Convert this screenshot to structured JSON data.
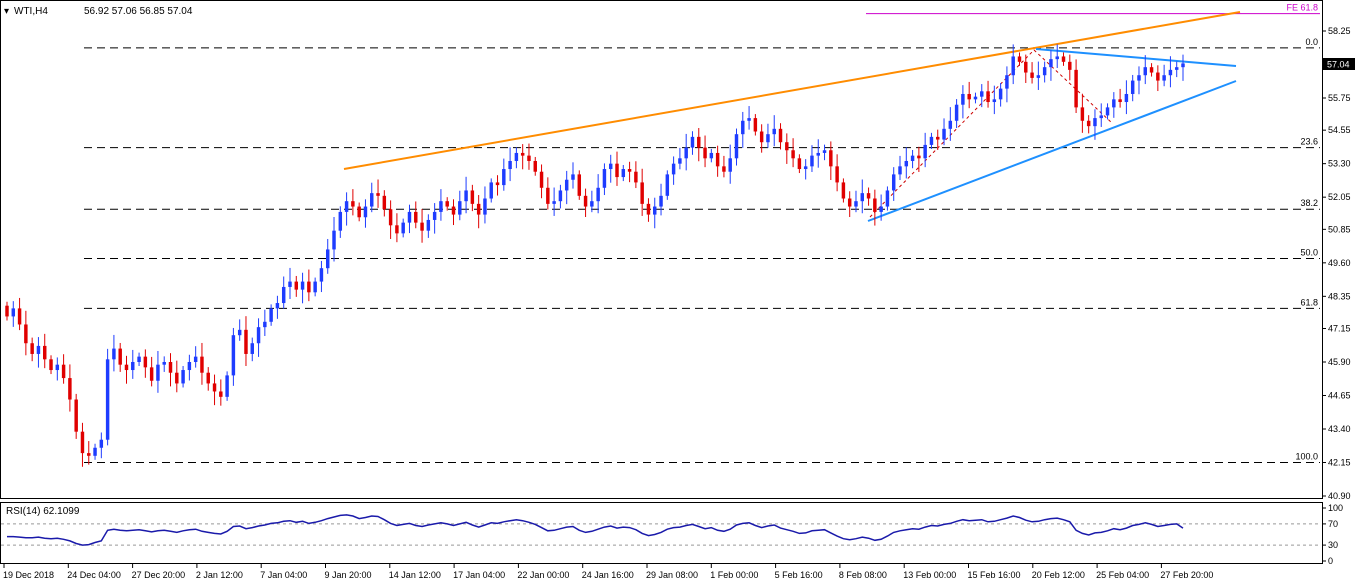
{
  "header": {
    "symbol": "WTI,H4",
    "ohlc": "56.92 57.06 56.85 57.04"
  },
  "chart_data": {
    "type": "candlestick",
    "price_axis": {
      "ticks": [
        "58.25",
        "57.00",
        "55.75",
        "54.55",
        "53.30",
        "52.05",
        "50.85",
        "49.60",
        "48.35",
        "47.15",
        "45.90",
        "44.65",
        "43.40",
        "42.15",
        "40.90"
      ],
      "ylim": [
        40.4,
        59.8
      ],
      "last_price": "57.04"
    },
    "time_axis": {
      "labels": [
        "19 Dec 2018",
        "24 Dec 04:00",
        "27 Dec 20:00",
        "2 Jan 12:00",
        "7 Jan 04:00",
        "9 Jan 20:00",
        "14 Jan 12:00",
        "17 Jan 04:00",
        "22 Jan 00:00",
        "24 Jan 16:00",
        "29 Jan 08:00",
        "1 Feb 00:00",
        "5 Feb 16:00",
        "8 Feb 08:00",
        "13 Feb 00:00",
        "15 Feb 16:00",
        "20 Feb 12:00",
        "25 Feb 04:00",
        "27 Feb 20:00"
      ]
    },
    "fibonacci": {
      "levels": [
        {
          "label": "0.0",
          "price": 57.62
        },
        {
          "label": "23.6",
          "price": 53.9
        },
        {
          "label": "38.2",
          "price": 51.6
        },
        {
          "label": "50.0",
          "price": 49.76
        },
        {
          "label": "61.8",
          "price": 47.9
        },
        {
          "label": "100.0",
          "price": 42.15
        }
      ],
      "extension": {
        "label": "FE 61.8",
        "price": 58.9
      }
    },
    "closes": [
      47.6,
      47.9,
      47.3,
      46.6,
      46.2,
      46.5,
      46.0,
      45.6,
      45.8,
      45.3,
      44.5,
      43.3,
      42.5,
      42.4,
      42.7,
      43.0,
      46.0,
      46.4,
      45.8,
      45.6,
      45.9,
      46.1,
      45.7,
      45.2,
      45.8,
      45.9,
      45.5,
      45.1,
      45.6,
      45.9,
      46.1,
      45.5,
      45.1,
      44.8,
      44.6,
      45.4,
      46.9,
      47.1,
      46.2,
      46.6,
      47.2,
      47.4,
      47.9,
      48.1,
      48.7,
      48.9,
      48.6,
      48.9,
      48.5,
      48.9,
      49.4,
      50.1,
      50.8,
      51.5,
      51.9,
      51.7,
      51.3,
      51.7,
      52.2,
      52.1,
      51.6,
      51.0,
      50.7,
      51.1,
      51.5,
      51.1,
      50.8,
      51.2,
      51.5,
      51.9,
      51.7,
      51.4,
      51.9,
      52.3,
      51.8,
      51.4,
      52.0,
      52.6,
      52.5,
      53.1,
      53.4,
      53.7,
      53.6,
      53.4,
      53.0,
      52.4,
      51.8,
      51.9,
      52.3,
      52.7,
      52.9,
      52.1,
      51.7,
      51.9,
      52.4,
      53.1,
      53.3,
      52.8,
      53.1,
      53.0,
      52.6,
      51.8,
      51.4,
      51.7,
      52.1,
      52.9,
      53.3,
      53.5,
      53.9,
      54.3,
      53.9,
      53.5,
      53.7,
      53.2,
      53.0,
      53.5,
      54.4,
      54.9,
      55.0,
      54.5,
      54.1,
      54.4,
      54.6,
      54.1,
      53.8,
      53.5,
      53.1,
      53.2,
      53.6,
      53.7,
      53.8,
      53.2,
      52.6,
      52.0,
      51.7,
      51.9,
      52.2,
      52.0,
      51.5,
      51.7,
      52.3,
      52.9,
      53.2,
      53.4,
      53.6,
      53.5,
      54.0,
      54.3,
      54.2,
      54.6,
      54.9,
      55.5,
      55.9,
      55.7,
      55.8,
      56.0,
      55.6,
      55.7,
      56.1,
      56.6,
      57.3,
      57.1,
      56.7,
      56.5,
      56.6,
      56.9,
      57.2,
      57.3,
      57.1,
      56.8,
      55.4,
      54.9,
      54.7,
      55.0,
      55.1,
      55.4,
      55.7,
      55.6,
      55.9,
      56.4,
      56.6,
      56.9,
      56.7,
      56.4,
      56.6,
      56.8,
      56.9,
      57.04
    ]
  },
  "rsi": {
    "label": "RSI(14) 62.1099",
    "ticks": [
      "100",
      "70",
      "30",
      "0"
    ],
    "values": [
      46,
      46,
      45,
      44,
      44,
      45,
      43,
      42,
      43,
      41,
      38,
      33,
      30,
      31,
      35,
      38,
      58,
      60,
      58,
      57,
      58,
      59,
      57,
      55,
      57,
      58,
      56,
      54,
      57,
      59,
      60,
      56,
      54,
      52,
      51,
      56,
      65,
      66,
      61,
      63,
      66,
      68,
      71,
      72,
      75,
      76,
      73,
      75,
      71,
      73,
      76,
      80,
      83,
      86,
      87,
      85,
      80,
      82,
      85,
      84,
      78,
      71,
      67,
      69,
      71,
      67,
      65,
      68,
      70,
      72,
      70,
      67,
      70,
      73,
      68,
      64,
      68,
      72,
      71,
      74,
      76,
      78,
      76,
      73,
      69,
      63,
      57,
      58,
      61,
      64,
      65,
      58,
      54,
      56,
      60,
      64,
      66,
      62,
      64,
      63,
      59,
      52,
      48,
      50,
      54,
      60,
      63,
      64,
      67,
      69,
      65,
      61,
      63,
      58,
      56,
      60,
      68,
      71,
      72,
      67,
      63,
      66,
      68,
      62,
      59,
      56,
      52,
      53,
      57,
      58,
      59,
      53,
      47,
      42,
      40,
      42,
      45,
      43,
      39,
      41,
      47,
      54,
      57,
      59,
      61,
      60,
      64,
      67,
      66,
      69,
      71,
      75,
      78,
      76,
      77,
      78,
      74,
      75,
      78,
      81,
      85,
      82,
      77,
      74,
      75,
      78,
      80,
      81,
      78,
      74,
      58,
      52,
      49,
      53,
      54,
      57,
      61,
      59,
      62,
      67,
      69,
      72,
      69,
      65,
      67,
      69,
      70,
      62
    ]
  }
}
